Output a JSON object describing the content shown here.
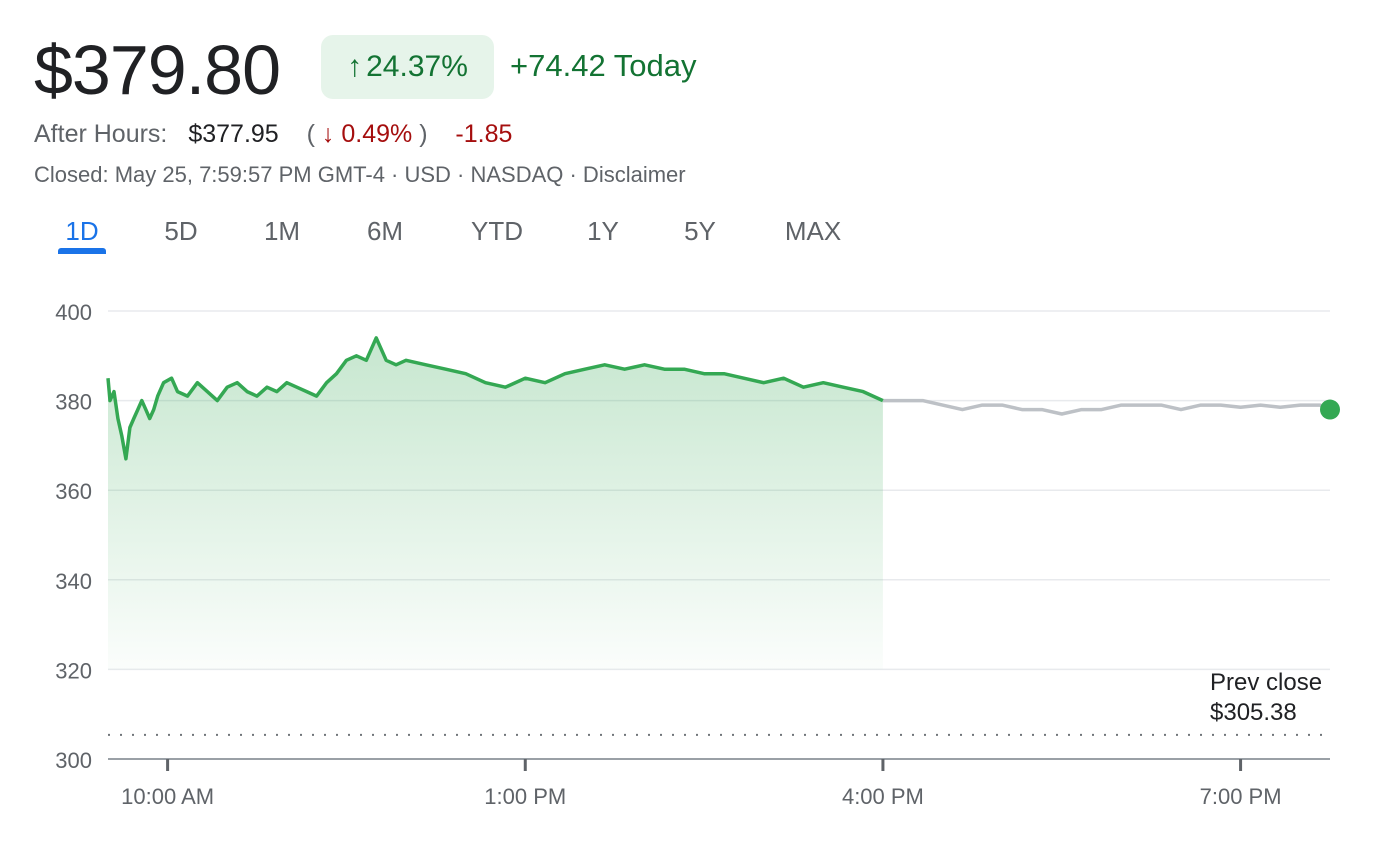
{
  "quote": {
    "price": "$379.80",
    "change_arrow": "↑",
    "change_pct": "24.37%",
    "change_today": "+74.42 Today",
    "after_hours_label": "After Hours:",
    "after_hours_price": "$377.95",
    "after_hours_open_paren": "(",
    "after_hours_arrow": "↓",
    "after_hours_pct": "0.49%",
    "after_hours_close_paren": ")",
    "after_hours_change": "-1.85",
    "meta": "Closed: May 25, 7:59:57 PM GMT-4 · USD · NASDAQ · Disclaimer"
  },
  "tabs": [
    {
      "label": "1D",
      "active": true
    },
    {
      "label": "5D"
    },
    {
      "label": "1M"
    },
    {
      "label": "6M"
    },
    {
      "label": "YTD"
    },
    {
      "label": "1Y"
    },
    {
      "label": "5Y"
    },
    {
      "label": "MAX"
    }
  ],
  "prev_close": {
    "label": "Prev close",
    "value": "$305.38"
  },
  "colors": {
    "up": "#137333",
    "line_up": "#34a853",
    "down": "#a50e0e",
    "after_hours_line": "#bdc1c6",
    "active_tab": "#1a73e8"
  },
  "chart_data": {
    "type": "area",
    "ylim": [
      300,
      400
    ],
    "yticks": [
      400,
      380,
      360,
      340,
      320,
      300
    ],
    "xlim": [
      "09:30",
      "19:45"
    ],
    "xticks": [
      {
        "time": "10:00",
        "label": "10:00 AM"
      },
      {
        "time": "13:00",
        "label": "1:00 PM"
      },
      {
        "time": "16:00",
        "label": "4:00 PM"
      },
      {
        "time": "19:00",
        "label": "7:00 PM"
      }
    ],
    "grid": true,
    "prev_close": 305.38,
    "series": [
      {
        "session": "regular",
        "points": [
          [
            "09:30",
            385
          ],
          [
            "09:31",
            380
          ],
          [
            "09:33",
            382
          ],
          [
            "09:35",
            376
          ],
          [
            "09:37",
            372
          ],
          [
            "09:39",
            367
          ],
          [
            "09:41",
            374
          ],
          [
            "09:43",
            376
          ],
          [
            "09:45",
            378
          ],
          [
            "09:47",
            380
          ],
          [
            "09:49",
            378
          ],
          [
            "09:51",
            376
          ],
          [
            "09:53",
            378
          ],
          [
            "09:55",
            381
          ],
          [
            "09:58",
            384
          ],
          [
            "10:02",
            385
          ],
          [
            "10:05",
            382
          ],
          [
            "10:10",
            381
          ],
          [
            "10:15",
            384
          ],
          [
            "10:20",
            382
          ],
          [
            "10:25",
            380
          ],
          [
            "10:30",
            383
          ],
          [
            "10:35",
            384
          ],
          [
            "10:40",
            382
          ],
          [
            "10:45",
            381
          ],
          [
            "10:50",
            383
          ],
          [
            "10:55",
            382
          ],
          [
            "11:00",
            384
          ],
          [
            "11:05",
            383
          ],
          [
            "11:10",
            382
          ],
          [
            "11:15",
            381
          ],
          [
            "11:20",
            384
          ],
          [
            "11:25",
            386
          ],
          [
            "11:30",
            389
          ],
          [
            "11:35",
            390
          ],
          [
            "11:40",
            389
          ],
          [
            "11:45",
            394
          ],
          [
            "11:48",
            391
          ],
          [
            "11:50",
            389
          ],
          [
            "11:55",
            388
          ],
          [
            "12:00",
            389
          ],
          [
            "12:10",
            388
          ],
          [
            "12:20",
            387
          ],
          [
            "12:30",
            386
          ],
          [
            "12:40",
            384
          ],
          [
            "12:50",
            383
          ],
          [
            "13:00",
            385
          ],
          [
            "13:10",
            384
          ],
          [
            "13:20",
            386
          ],
          [
            "13:30",
            387
          ],
          [
            "13:40",
            388
          ],
          [
            "13:50",
            387
          ],
          [
            "14:00",
            388
          ],
          [
            "14:10",
            387
          ],
          [
            "14:20",
            387
          ],
          [
            "14:30",
            386
          ],
          [
            "14:40",
            386
          ],
          [
            "14:50",
            385
          ],
          [
            "15:00",
            384
          ],
          [
            "15:10",
            385
          ],
          [
            "15:20",
            383
          ],
          [
            "15:30",
            384
          ],
          [
            "15:40",
            383
          ],
          [
            "15:50",
            382
          ],
          [
            "16:00",
            380
          ]
        ]
      },
      {
        "session": "after-hours",
        "points": [
          [
            "16:00",
            380
          ],
          [
            "16:10",
            380
          ],
          [
            "16:20",
            380
          ],
          [
            "16:30",
            379
          ],
          [
            "16:40",
            378
          ],
          [
            "16:50",
            379
          ],
          [
            "17:00",
            379
          ],
          [
            "17:10",
            378
          ],
          [
            "17:20",
            378
          ],
          [
            "17:30",
            377
          ],
          [
            "17:40",
            378
          ],
          [
            "17:50",
            378
          ],
          [
            "18:00",
            379
          ],
          [
            "18:10",
            379
          ],
          [
            "18:20",
            379
          ],
          [
            "18:30",
            378
          ],
          [
            "18:40",
            379
          ],
          [
            "18:50",
            379
          ],
          [
            "19:00",
            378.5
          ],
          [
            "19:10",
            379
          ],
          [
            "19:20",
            378.5
          ],
          [
            "19:30",
            379
          ],
          [
            "19:40",
            379
          ],
          [
            "19:45",
            378
          ]
        ]
      }
    ]
  }
}
